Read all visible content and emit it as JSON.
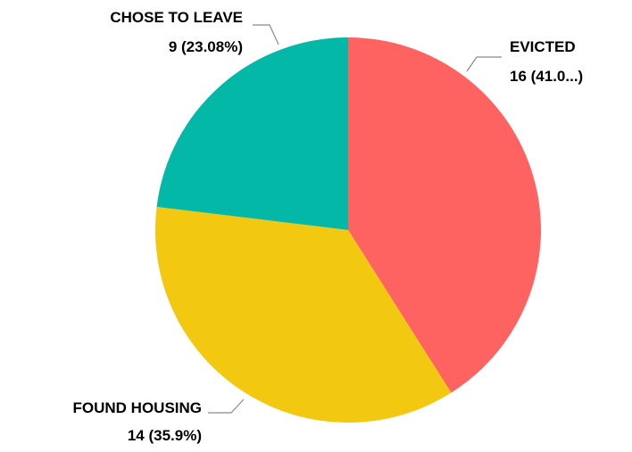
{
  "chart_data": {
    "type": "pie",
    "title": "",
    "slices": [
      {
        "label": "EVICTED",
        "value": 16,
        "value_text": "16 (41.0...)",
        "color": "#FF6361"
      },
      {
        "label": "FOUND HOUSING",
        "value": 14,
        "value_text": "14 (35.9%)",
        "color": "#F2C811"
      },
      {
        "label": "CHOSE TO LEAVE",
        "value": 9,
        "value_text": "9 (23.08%)",
        "color": "#04B8A8"
      }
    ],
    "start_angle": "12 o'clock",
    "direction": "clockwise",
    "legend": "none"
  }
}
